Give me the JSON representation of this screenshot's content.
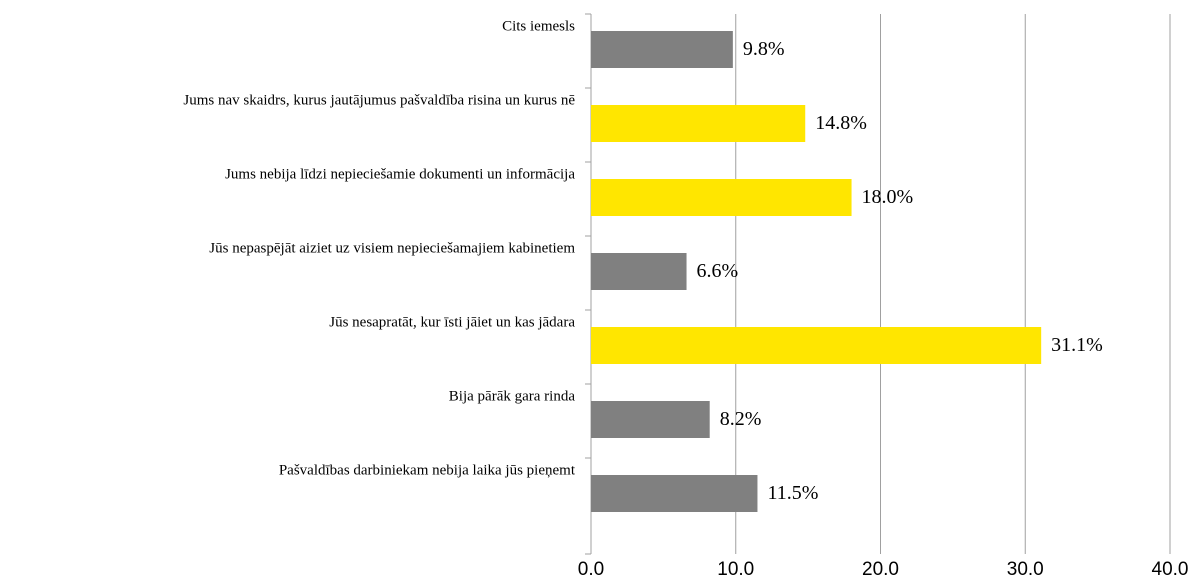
{
  "chart_data": {
    "type": "barh",
    "categories": [
      "Cits iemesls",
      "Jums nav skaidrs, kurus jautājumus pašvaldība risina un kurus nē",
      "Jums nebija līdzi nepieciešamie dokumenti un informācija",
      "Jūs nepaspējāt aiziet uz visiem nepieciešamajiem kabinetiem",
      "Jūs nesapratāt, kur īsti jāiet un kas jādara",
      "Bija pārāk gara rinda",
      "Pašvaldības darbiniekam nebija laika jūs pieņemt"
    ],
    "values": [
      9.8,
      14.8,
      18.0,
      6.6,
      31.1,
      8.2,
      11.5
    ],
    "value_labels": [
      "9.8%",
      "14.8%",
      "18.0%",
      "6.6%",
      "31.1%",
      "8.2%",
      "11.5%"
    ],
    "colors": [
      "#808080",
      "#ffe600",
      "#ffe600",
      "#808080",
      "#ffe600",
      "#808080",
      "#808080"
    ],
    "xlim": [
      0,
      40
    ],
    "xticks": [
      {
        "value": 0,
        "label": "0.0"
      },
      {
        "value": 10,
        "label": "10.0"
      },
      {
        "value": 20,
        "label": "20.0"
      },
      {
        "value": 30,
        "label": "30.0"
      },
      {
        "value": 40,
        "label": "40.0"
      }
    ],
    "grid": true
  }
}
